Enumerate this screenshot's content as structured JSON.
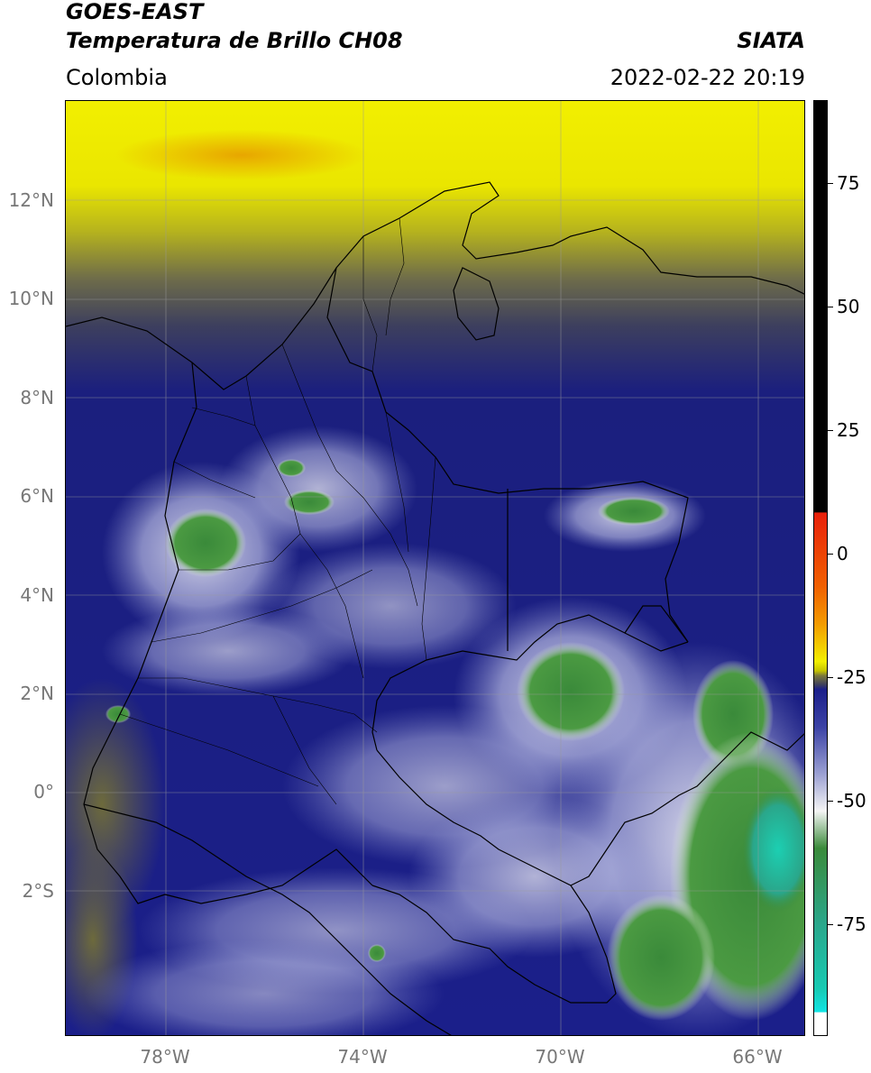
{
  "header": {
    "title_line1": "GOES-EAST",
    "title_line2": "Temperatura de Brillo CH08",
    "brand": "SIATA",
    "region": "Colombia",
    "timestamp": "2022-02-22 20:19"
  },
  "map": {
    "lat_labels": [
      "12°N",
      "10°N",
      "8°N",
      "6°N",
      "4°N",
      "2°N",
      "0°",
      "2°S"
    ],
    "lon_labels": [
      "78°W",
      "74°W",
      "70°W",
      "66°W"
    ]
  },
  "colorbar": {
    "tick_labels": [
      "75",
      "50",
      "25",
      "0",
      "-25",
      "-50",
      "-75"
    ],
    "colors": {
      "black": "#000000",
      "red": "#e8200a",
      "orange": "#f29b00",
      "yellow": "#f2ef00",
      "olive": "#7d7a3a",
      "navy": "#1b1f8a",
      "lavender": "#9a9fd2",
      "white": "#f4f4f4",
      "green": "#3a8a3a",
      "teal": "#17c9b2",
      "cyan": "#11e3e3"
    }
  }
}
